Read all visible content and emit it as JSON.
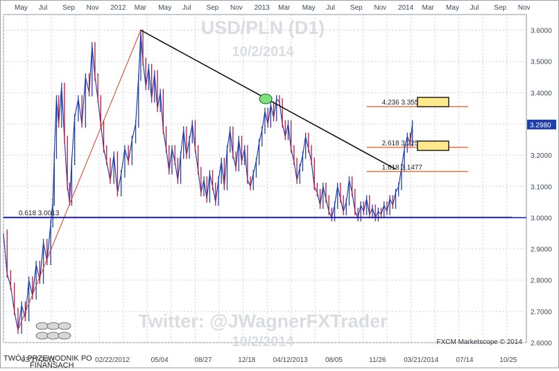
{
  "chart_data": {
    "type": "line",
    "title": "USD/PLN (D1)",
    "subtitle": "10/2/2014",
    "watermark": "Twitter: @JWagnerFXTrader",
    "watermark_date": "10/2/2014",
    "credit": "FXCM Marketscope © 2014",
    "logo_text": [
      "TWÓJ PRZEWODNIK PO",
      "FINANSACH"
    ],
    "ylim": [
      2.6,
      3.65
    ],
    "grid": true,
    "y_ticks": [
      {
        "v": 3.6,
        "label": "3.6000"
      },
      {
        "v": 3.5,
        "label": "3.5000"
      },
      {
        "v": 3.4,
        "label": "3.4000"
      },
      {
        "v": 3.3,
        "label": "3.3000"
      },
      {
        "v": 3.2,
        "label": "3.2000"
      },
      {
        "v": 3.1,
        "label": "3.1000"
      },
      {
        "v": 3.0,
        "label": "3.0000"
      },
      {
        "v": 2.9,
        "label": "2.9000"
      },
      {
        "v": 2.8,
        "label": "2.8000"
      },
      {
        "v": 2.7,
        "label": "2.7000"
      },
      {
        "v": 2.6,
        "label": "2.6000"
      }
    ],
    "top_ticks": [
      {
        "t": 0.0,
        "label": "May"
      },
      {
        "t": 0.033,
        "label": "Jul"
      },
      {
        "t": 0.066,
        "label": "Sep"
      },
      {
        "t": 0.099,
        "label": "Nov"
      },
      {
        "t": 0.132,
        "label": "2012"
      },
      {
        "t": 0.165,
        "label": "Mar"
      },
      {
        "t": 0.198,
        "label": "May"
      },
      {
        "t": 0.231,
        "label": "Jul"
      },
      {
        "t": 0.264,
        "label": "Sep"
      },
      {
        "t": 0.297,
        "label": "Nov"
      },
      {
        "t": 0.33,
        "label": "2013"
      },
      {
        "t": 0.363,
        "label": "Mar"
      },
      {
        "t": 0.396,
        "label": "May"
      },
      {
        "t": 0.429,
        "label": "Jul"
      },
      {
        "t": 0.462,
        "label": "Sep"
      },
      {
        "t": 0.495,
        "label": "Nov"
      },
      {
        "t": 0.528,
        "label": "2014"
      },
      {
        "t": 0.561,
        "label": "Mar"
      },
      {
        "t": 0.594,
        "label": "May"
      },
      {
        "t": 0.627,
        "label": "Jul"
      },
      {
        "t": 0.66,
        "label": "Sep"
      },
      {
        "t": 0.693,
        "label": "Nov"
      }
    ],
    "bottom_ticks": [
      {
        "t": 0.048,
        "label": "03/17/2011"
      },
      {
        "t": 0.15,
        "label": "02/22/2012"
      },
      {
        "t": 0.215,
        "label": "05/04"
      },
      {
        "t": 0.275,
        "label": "08/27"
      },
      {
        "t": 0.335,
        "label": "12/18"
      },
      {
        "t": 0.395,
        "label": "04/12/2013"
      },
      {
        "t": 0.455,
        "label": "08/05"
      },
      {
        "t": 0.515,
        "label": "11/26"
      },
      {
        "t": 0.575,
        "label": "03/21/2014"
      },
      {
        "t": 0.635,
        "label": "07/14"
      },
      {
        "t": 0.695,
        "label": "10/25"
      }
    ],
    "price_label": "3.2980",
    "last_price": 3.298,
    "series": [
      {
        "color": "#1f3fb0",
        "secondary_color": "#c0143c",
        "points": [
          [
            0.0,
            2.95
          ],
          [
            0.005,
            2.82
          ],
          [
            0.01,
            2.78
          ],
          [
            0.015,
            2.7
          ],
          [
            0.02,
            2.64
          ],
          [
            0.025,
            2.72
          ],
          [
            0.03,
            2.68
          ],
          [
            0.035,
            2.8
          ],
          [
            0.04,
            2.75
          ],
          [
            0.045,
            2.85
          ],
          [
            0.05,
            2.8
          ],
          [
            0.055,
            2.92
          ],
          [
            0.06,
            2.86
          ],
          [
            0.065,
            2.98
          ],
          [
            0.068,
            3.05
          ],
          [
            0.07,
            3.2
          ],
          [
            0.073,
            3.38
          ],
          [
            0.076,
            3.3
          ],
          [
            0.08,
            3.42
          ],
          [
            0.084,
            3.25
          ],
          [
            0.088,
            3.1
          ],
          [
            0.091,
            3.05
          ],
          [
            0.094,
            3.18
          ],
          [
            0.098,
            3.32
          ],
          [
            0.103,
            3.38
          ],
          [
            0.108,
            3.3
          ],
          [
            0.113,
            3.45
          ],
          [
            0.118,
            3.4
          ],
          [
            0.122,
            3.55
          ],
          [
            0.126,
            3.45
          ],
          [
            0.13,
            3.38
          ],
          [
            0.134,
            3.3
          ],
          [
            0.138,
            3.22
          ],
          [
            0.142,
            3.18
          ],
          [
            0.147,
            3.12
          ],
          [
            0.152,
            3.2
          ],
          [
            0.157,
            3.08
          ],
          [
            0.162,
            3.14
          ],
          [
            0.167,
            3.22
          ],
          [
            0.172,
            3.18
          ],
          [
            0.177,
            3.25
          ],
          [
            0.182,
            3.3
          ],
          [
            0.186,
            3.45
          ],
          [
            0.189,
            3.59
          ],
          [
            0.192,
            3.5
          ],
          [
            0.196,
            3.42
          ],
          [
            0.2,
            3.48
          ],
          [
            0.204,
            3.38
          ],
          [
            0.208,
            3.46
          ],
          [
            0.212,
            3.35
          ],
          [
            0.216,
            3.4
          ],
          [
            0.22,
            3.28
          ],
          [
            0.224,
            3.22
          ],
          [
            0.228,
            3.15
          ],
          [
            0.232,
            3.22
          ],
          [
            0.236,
            3.18
          ],
          [
            0.24,
            3.12
          ],
          [
            0.244,
            3.2
          ],
          [
            0.248,
            3.28
          ],
          [
            0.252,
            3.2
          ],
          [
            0.256,
            3.25
          ],
          [
            0.26,
            3.3
          ],
          [
            0.264,
            3.22
          ],
          [
            0.268,
            3.15
          ],
          [
            0.272,
            3.08
          ],
          [
            0.276,
            3.12
          ],
          [
            0.28,
            3.06
          ],
          [
            0.284,
            3.14
          ],
          [
            0.288,
            3.1
          ],
          [
            0.292,
            3.05
          ],
          [
            0.296,
            3.12
          ],
          [
            0.3,
            3.18
          ],
          [
            0.304,
            3.1
          ],
          [
            0.308,
            3.22
          ],
          [
            0.312,
            3.28
          ],
          [
            0.316,
            3.2
          ],
          [
            0.32,
            3.16
          ],
          [
            0.324,
            3.25
          ],
          [
            0.328,
            3.18
          ],
          [
            0.332,
            3.22
          ],
          [
            0.336,
            3.12
          ],
          [
            0.34,
            3.1
          ],
          [
            0.344,
            3.14
          ],
          [
            0.348,
            3.18
          ],
          [
            0.352,
            3.24
          ],
          [
            0.356,
            3.28
          ],
          [
            0.36,
            3.34
          ],
          [
            0.364,
            3.3
          ],
          [
            0.368,
            3.36
          ],
          [
            0.372,
            3.32
          ],
          [
            0.376,
            3.38
          ],
          [
            0.38,
            3.37
          ],
          [
            0.384,
            3.3
          ],
          [
            0.388,
            3.26
          ],
          [
            0.392,
            3.3
          ],
          [
            0.396,
            3.22
          ],
          [
            0.4,
            3.18
          ],
          [
            0.404,
            3.12
          ],
          [
            0.408,
            3.16
          ],
          [
            0.412,
            3.2
          ],
          [
            0.416,
            3.26
          ],
          [
            0.42,
            3.22
          ],
          [
            0.424,
            3.18
          ],
          [
            0.428,
            3.1
          ],
          [
            0.432,
            3.08
          ],
          [
            0.436,
            3.04
          ],
          [
            0.44,
            3.1
          ],
          [
            0.444,
            3.06
          ],
          [
            0.448,
            3.02
          ],
          [
            0.452,
            3.0
          ],
          [
            0.456,
            3.04
          ],
          [
            0.46,
            3.1
          ],
          [
            0.464,
            3.06
          ],
          [
            0.468,
            3.02
          ],
          [
            0.472,
            3.05
          ],
          [
            0.476,
            3.12
          ],
          [
            0.48,
            3.08
          ],
          [
            0.484,
            3.02
          ],
          [
            0.488,
            3.0
          ],
          [
            0.492,
            3.04
          ],
          [
            0.496,
            3.02
          ],
          [
            0.5,
            3.06
          ],
          [
            0.504,
            3.01
          ],
          [
            0.508,
            3.03
          ],
          [
            0.512,
            3.0
          ],
          [
            0.516,
            3.02
          ],
          [
            0.52,
            3.01
          ],
          [
            0.524,
            3.04
          ],
          [
            0.528,
            3.02
          ],
          [
            0.532,
            3.06
          ],
          [
            0.536,
            3.04
          ],
          [
            0.54,
            3.08
          ],
          [
            0.544,
            3.1
          ],
          [
            0.548,
            3.16
          ],
          [
            0.552,
            3.22
          ],
          [
            0.556,
            3.26
          ],
          [
            0.56,
            3.24
          ],
          [
            0.563,
            3.3
          ]
        ]
      }
    ],
    "annotations": {
      "trendline": {
        "from": [
          0.189,
          3.6
        ],
        "to": [
          0.54,
          3.155
        ],
        "color": "#111111"
      },
      "fib_retrace_line": {
        "from": [
          0.02,
          2.64
        ],
        "to": [
          0.189,
          3.6
        ],
        "color": "#e8341c"
      },
      "support_line": {
        "y": 3.0,
        "color": "#1a1ab4"
      },
      "levels": [
        {
          "label": "0.618 3.0013",
          "y": 3.0013,
          "x0": 0.0,
          "x1": 0.7,
          "color": "#1a1ab4"
        },
        {
          "label": "4.236 3.3553",
          "y": 3.3553,
          "x0": 0.5,
          "x1": 0.64,
          "color": "#e8581c"
        },
        {
          "label": "2.618 3.2250",
          "y": 3.225,
          "x0": 0.5,
          "x1": 0.64,
          "color": "#e8581c"
        },
        {
          "label": "1.618 3.1477",
          "y": 3.1477,
          "x0": 0.5,
          "x1": 0.64,
          "color": "#e8581c"
        }
      ],
      "boxes": [
        {
          "x0": 0.57,
          "x1": 0.613,
          "y0": 3.355,
          "y1": 3.385
        },
        {
          "x0": 0.57,
          "x1": 0.613,
          "y0": 3.215,
          "y1": 3.245
        }
      ],
      "marker": {
        "x": 0.361,
        "y": 3.38
      }
    }
  }
}
